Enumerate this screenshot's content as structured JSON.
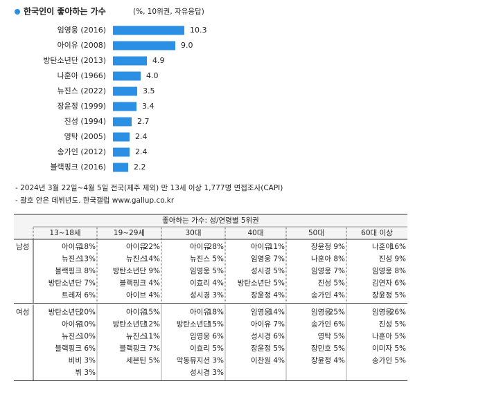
{
  "chart_data": {
    "type": "bar",
    "title": "한국인이 좋아하는 가수",
    "subtitle": "(%, 10위권, 자유응답)",
    "categories": [
      "임영웅 (2016)",
      "아이유 (2008)",
      "방탄소년단 (2013)",
      "나훈아 (1966)",
      "뉴진스 (2022)",
      "장윤정 (1999)",
      "진성 (1994)",
      "영탁 (2005)",
      "송가인 (2012)",
      "블랙핑크 (2016)"
    ],
    "values": [
      10.3,
      9.0,
      4.9,
      4.0,
      3.5,
      3.4,
      2.7,
      2.4,
      2.4,
      2.2
    ],
    "value_labels": [
      "10.3",
      "9.0",
      "4.9",
      "4.0",
      "3.5",
      "3.4",
      "2.7",
      "2.4",
      "2.4",
      "2.2"
    ],
    "color": "#2b8fe3"
  },
  "notes": [
    "- 2024년 3월 22일~4월 5일 전국(제주 제외) 만 13세 이상 1,777명 면접조사(CAPI)",
    "- 괄호 안은 데뷔년도. 한국갤럽 www.gallup.co.kr"
  ],
  "table": {
    "title": "좋아하는 가수: 성/연령별 5위권",
    "columns": [
      "13~18세",
      "19~29세",
      "30대",
      "40대",
      "50대",
      "60대 이상"
    ],
    "groups": [
      {
        "label": "남성",
        "rows": [
          [
            [
              "아이유",
              "18%"
            ],
            [
              "아이유",
              "22%"
            ],
            [
              "아이유",
              "28%"
            ],
            [
              "아이유",
              "11%"
            ],
            [
              "장윤정",
              "9%"
            ],
            [
              "나훈아",
              "16%"
            ]
          ],
          [
            [
              "뉴진스",
              "13%"
            ],
            [
              "뉴진스",
              "14%"
            ],
            [
              "뉴진스",
              "5%"
            ],
            [
              "임영웅",
              "7%"
            ],
            [
              "나훈아",
              "8%"
            ],
            [
              "진성",
              "9%"
            ]
          ],
          [
            [
              "블랙핑크",
              "8%"
            ],
            [
              "방탄소년단",
              "9%"
            ],
            [
              "임영웅",
              "5%"
            ],
            [
              "성시경",
              "5%"
            ],
            [
              "임영웅",
              "7%"
            ],
            [
              "임영웅",
              "8%"
            ]
          ],
          [
            [
              "방탄소년단",
              "7%"
            ],
            [
              "블랙핑크",
              "4%"
            ],
            [
              "이효리",
              "4%"
            ],
            [
              "방탄소년단",
              "5%"
            ],
            [
              "진성",
              "5%"
            ],
            [
              "김연자",
              "6%"
            ]
          ],
          [
            [
              "트레저",
              "6%"
            ],
            [
              "아이브",
              "4%"
            ],
            [
              "성시경",
              "3%"
            ],
            [
              "장윤정",
              "4%"
            ],
            [
              "송가인",
              "4%"
            ],
            [
              "장윤정",
              "5%"
            ]
          ]
        ]
      },
      {
        "label": "여성",
        "rows": [
          [
            [
              "방탄소년단",
              "20%"
            ],
            [
              "아이유",
              "15%"
            ],
            [
              "아이유",
              "18%"
            ],
            [
              "임영웅",
              "14%"
            ],
            [
              "임영웅",
              "25%"
            ],
            [
              "임영웅",
              "26%"
            ]
          ],
          [
            [
              "아이유",
              "10%"
            ],
            [
              "방탄소년단",
              "12%"
            ],
            [
              "방탄소년단",
              "15%"
            ],
            [
              "아이유",
              "7%"
            ],
            [
              "송가인",
              "6%"
            ],
            [
              "진성",
              "5%"
            ]
          ],
          [
            [
              "뉴진스",
              "10%"
            ],
            [
              "뉴진스",
              "11%"
            ],
            [
              "임영웅",
              "6%"
            ],
            [
              "성시경",
              "6%"
            ],
            [
              "영탁",
              "5%"
            ],
            [
              "나훈아",
              "5%"
            ]
          ],
          [
            [
              "블랙핑크",
              "6%"
            ],
            [
              "블랙핑크",
              "7%"
            ],
            [
              "이효리",
              "5%"
            ],
            [
              "장윤정",
              "5%"
            ],
            [
              "장민호",
              "5%"
            ],
            [
              "이미자",
              "5%"
            ]
          ],
          [
            [
              "비비",
              "3%"
            ],
            [
              "세븐틴",
              "5%"
            ],
            [
              "악동뮤지션",
              "3%"
            ],
            [
              "이찬원",
              "4%"
            ],
            [
              "장윤정",
              "4%"
            ],
            [
              "송가인",
              "5%"
            ]
          ],
          [
            [
              "뷔",
              "3%"
            ],
            null,
            [
              "성시경",
              "3%"
            ],
            null,
            null,
            null
          ]
        ]
      }
    ]
  }
}
